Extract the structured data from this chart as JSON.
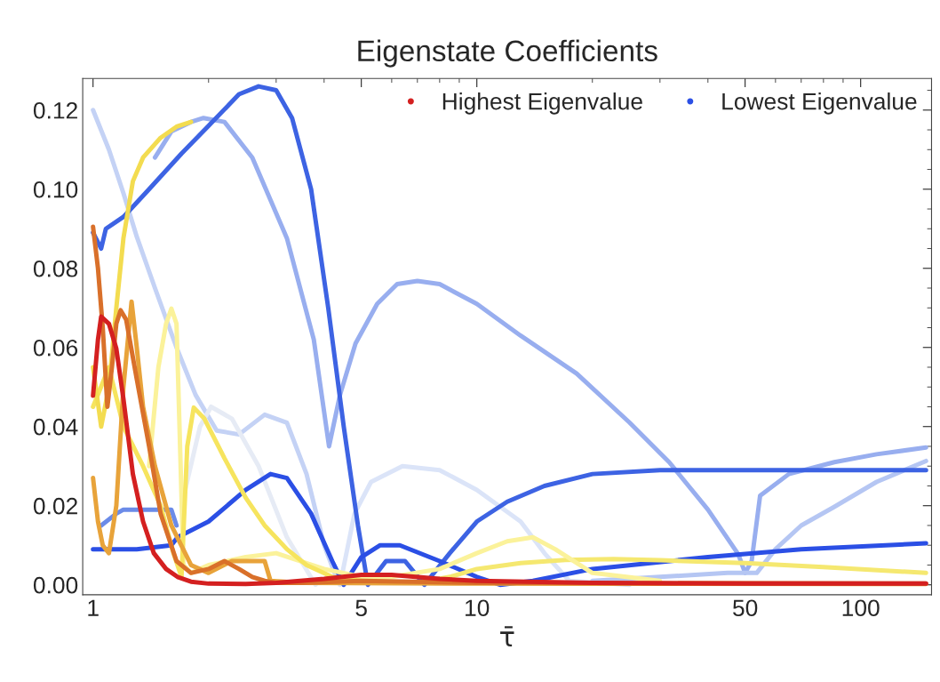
{
  "chart_data": {
    "type": "line",
    "title": "Eigenstate Coefficients",
    "xlabel": "τ̄",
    "log": "x",
    "xlim": [
      0.94,
      153
    ],
    "xticks": [
      1,
      5,
      10,
      50,
      100
    ],
    "ylim": [
      -0.0025,
      0.128
    ],
    "yticks": [
      {
        "value": 0,
        "label": "0.00"
      },
      {
        "value": 0.02,
        "label": "0.02"
      },
      {
        "value": 0.04,
        "label": "0.04"
      },
      {
        "value": 0.06,
        "label": "0.06"
      },
      {
        "value": 0.08,
        "label": "0.08"
      },
      {
        "value": 0.1,
        "label": "0.10"
      },
      {
        "value": 0.12,
        "label": "0.12"
      }
    ],
    "grid": false,
    "legend": "top right",
    "series": [
      {
        "color": "#98aeef",
        "x": [
          1.45,
          1.6,
          1.8,
          1.94,
          2.2,
          2.6,
          3.2,
          3.76,
          4.12,
          4.4,
          4.83,
          5.5,
          6.2,
          7.0,
          8.0,
          10,
          13,
          18.2,
          25,
          31.7,
          40,
          48,
          50,
          52,
          54.7,
          65,
          85.4,
          110,
          148
        ],
        "values": [
          0.108,
          0.1146,
          0.117,
          0.118,
          0.117,
          0.108,
          0.0876,
          0.062,
          0.035,
          0.048,
          0.061,
          0.071,
          0.076,
          0.0768,
          0.076,
          0.071,
          0.063,
          0.0534,
          0.041,
          0.031,
          0.019,
          0.0077,
          0.003,
          0.006,
          0.0225,
          0.028,
          0.031,
          0.033,
          0.0347
        ]
      },
      {
        "color": "#c4d2f5",
        "x": [
          1.0,
          1.1,
          1.2,
          1.3,
          1.45,
          1.65,
          1.85,
          2.1,
          2.4,
          2.8,
          3.2,
          3.6,
          4.0,
          4.3
        ],
        "values": [
          0.12,
          0.11,
          0.099,
          0.088,
          0.075,
          0.06,
          0.048,
          0.039,
          0.038,
          0.043,
          0.041,
          0.028,
          0.01,
          0.002
        ]
      },
      {
        "color": "#dbe4f8",
        "x": [
          4.4,
          4.8,
          5.3,
          6.4,
          8,
          10,
          13,
          15,
          17.4,
          25
        ],
        "values": [
          0.0,
          0.018,
          0.026,
          0.03,
          0.029,
          0.024,
          0.016,
          0.008,
          0.001,
          0.0
        ]
      },
      {
        "color": "#e6ebf5",
        "x": [
          1.7,
          1.9,
          2.03,
          2.3,
          2.7,
          3.2,
          3.8
        ],
        "values": [
          0.02,
          0.04,
          0.045,
          0.042,
          0.03,
          0.012,
          0.0
        ]
      },
      {
        "color": "#b5c6f3",
        "x": [
          20,
          30,
          45,
          53.6,
          60,
          70,
          85,
          110,
          148
        ],
        "values": [
          0.001,
          0.002,
          0.003,
          0.003,
          0.009,
          0.015,
          0.0196,
          0.026,
          0.0313
        ]
      },
      {
        "color": "#6b8be8",
        "x": [
          1.05,
          1.15,
          1.2,
          1.4,
          1.6,
          1.65
        ],
        "values": [
          0.015,
          0.018,
          0.019,
          0.019,
          0.019,
          0.015
        ]
      },
      {
        "color": "#3d63e3",
        "x": [
          1.0,
          1.05,
          1.08,
          1.2,
          1.4,
          1.7,
          2.0,
          2.4,
          2.7,
          3.0,
          3.3,
          3.7,
          4.1,
          4.5,
          4.9,
          5.2,
          5.8,
          6.5,
          7.3,
          8.5,
          10,
          12,
          15,
          20,
          30,
          50,
          100,
          148
        ],
        "values": [
          0.089,
          0.085,
          0.09,
          0.093,
          0.1,
          0.109,
          0.116,
          0.124,
          0.126,
          0.125,
          0.118,
          0.1,
          0.07,
          0.04,
          0.015,
          0.0,
          0.006,
          0.006,
          0.0,
          0.008,
          0.016,
          0.021,
          0.025,
          0.028,
          0.029,
          0.029,
          0.029,
          0.029
        ]
      },
      {
        "name": "Lowest Eigenvalue",
        "color": "#2b4fe5",
        "x": [
          1.0,
          1.3,
          1.6,
          1.66,
          2.0,
          2.5,
          2.9,
          3.2,
          3.7,
          4.2,
          4.5,
          5.0,
          5.6,
          6.3,
          8,
          10,
          11.5,
          14,
          20,
          40,
          70,
          148
        ],
        "values": [
          0.009,
          0.009,
          0.01,
          0.012,
          0.016,
          0.024,
          0.028,
          0.027,
          0.018,
          0.006,
          0.0,
          0.007,
          0.01,
          0.01,
          0.006,
          0.002,
          0.0,
          0.001,
          0.004,
          0.007,
          0.009,
          0.0105
        ]
      },
      {
        "color": "#f5e870",
        "x": [
          5,
          7,
          8.5,
          10,
          13,
          17,
          22.7,
          30,
          50,
          80,
          148
        ],
        "values": [
          0.001,
          0.0005,
          0.002,
          0.004,
          0.0055,
          0.0063,
          0.0065,
          0.0062,
          0.0055,
          0.0045,
          0.003
        ]
      },
      {
        "color": "#fbf29a",
        "x": [
          1.4,
          1.48,
          1.55,
          1.6,
          1.65,
          1.68,
          1.72,
          1.8,
          2.0,
          2.5,
          3,
          4,
          5,
          6,
          8,
          10,
          12,
          14,
          16,
          20,
          30
        ],
        "values": [
          0.03,
          0.055,
          0.066,
          0.0698,
          0.066,
          0.04,
          0.005,
          0.003,
          0.005,
          0.007,
          0.008,
          0.004,
          0.002,
          0.002,
          0.004,
          0.008,
          0.011,
          0.012,
          0.009,
          0.003,
          0.001
        ]
      },
      {
        "color": "#f6e45e",
        "x": [
          1.0,
          1.1,
          1.2,
          1.35,
          1.5,
          1.62,
          1.7,
          1.76,
          1.83,
          1.95,
          2.2,
          2.5,
          2.8,
          3.2,
          3.6,
          4.2,
          5
        ],
        "values": [
          0.045,
          0.055,
          0.04,
          0.03,
          0.02,
          0.008,
          0.002,
          0.035,
          0.0448,
          0.042,
          0.032,
          0.022,
          0.015,
          0.009,
          0.005,
          0.002,
          0.001
        ]
      },
      {
        "color": "#f3dc50",
        "x": [
          1.0,
          1.05,
          1.1,
          1.15,
          1.2,
          1.27,
          1.35,
          1.5,
          1.65,
          1.8
        ],
        "values": [
          0.055,
          0.04,
          0.05,
          0.07,
          0.0876,
          0.102,
          0.108,
          0.113,
          0.1158,
          0.117
        ]
      },
      {
        "color": "#e8a33a",
        "x": [
          1.0,
          1.03,
          1.06,
          1.1,
          1.15,
          1.2,
          1.26,
          1.3,
          1.35,
          1.45,
          1.6,
          1.8,
          2.0,
          2.3,
          2.8,
          2.9,
          3.5,
          10,
          148
        ],
        "values": [
          0.027,
          0.016,
          0.01,
          0.008,
          0.02,
          0.05,
          0.0716,
          0.06,
          0.045,
          0.03,
          0.015,
          0.005,
          0.003,
          0.006,
          0.006,
          0.001,
          0.0005,
          0.0003,
          0.0002
        ]
      },
      {
        "color": "#d9702a",
        "x": [
          1.0,
          1.03,
          1.06,
          1.09,
          1.12,
          1.15,
          1.18,
          1.22,
          1.3,
          1.4,
          1.5,
          1.65,
          1.8,
          2.0,
          2.2,
          2.4,
          2.6,
          2.8,
          3,
          3.5,
          5,
          10,
          148
        ],
        "values": [
          0.0905,
          0.08,
          0.065,
          0.045,
          0.055,
          0.066,
          0.0694,
          0.067,
          0.052,
          0.035,
          0.018,
          0.006,
          0.003,
          0.004,
          0.006,
          0.004,
          0.002,
          0.001,
          0.0005,
          0.0005,
          0.001,
          0.0005,
          0.0003
        ]
      },
      {
        "name": "Highest Eigenvalue",
        "color": "#d42020",
        "x": [
          1.0,
          1.03,
          1.05,
          1.1,
          1.15,
          1.2,
          1.27,
          1.35,
          1.44,
          1.55,
          1.66,
          1.8,
          2.0,
          2.5,
          3,
          4,
          5,
          6,
          8,
          10,
          20,
          50,
          148
        ],
        "values": [
          0.0478,
          0.062,
          0.0678,
          0.066,
          0.0597,
          0.047,
          0.028,
          0.016,
          0.008,
          0.004,
          0.002,
          0.0008,
          0.0003,
          0.0002,
          0.0005,
          0.0015,
          0.0025,
          0.0025,
          0.0015,
          0.001,
          0.0005,
          0.0003,
          0.0003
        ]
      }
    ]
  }
}
